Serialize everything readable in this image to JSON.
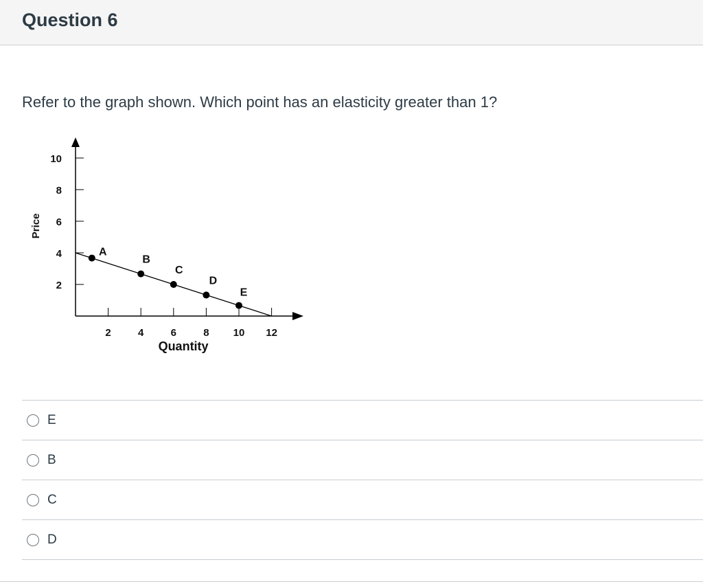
{
  "header": {
    "title": "Question 6"
  },
  "question": {
    "text": "Refer to the graph shown. Which point has an elasticity greater than 1?"
  },
  "chart_data": {
    "type": "line",
    "xlabel": "Quantity",
    "ylabel": "Price",
    "xlim": [
      0,
      12
    ],
    "ylim": [
      0,
      10
    ],
    "x_ticks": [
      2,
      4,
      6,
      8,
      10,
      12
    ],
    "y_ticks": [
      2,
      4,
      6,
      8,
      10
    ],
    "line": {
      "x": [
        0,
        12
      ],
      "y": [
        4,
        0
      ]
    },
    "points": [
      {
        "label": "A",
        "x": 1,
        "y": 3.67
      },
      {
        "label": "B",
        "x": 4,
        "y": 2.67
      },
      {
        "label": "C",
        "x": 6,
        "y": 2
      },
      {
        "label": "D",
        "x": 8,
        "y": 1.33
      },
      {
        "label": "E",
        "x": 10,
        "y": 0.67
      }
    ]
  },
  "answers": [
    {
      "label": "E"
    },
    {
      "label": "B"
    },
    {
      "label": "C"
    },
    {
      "label": "D"
    }
  ]
}
